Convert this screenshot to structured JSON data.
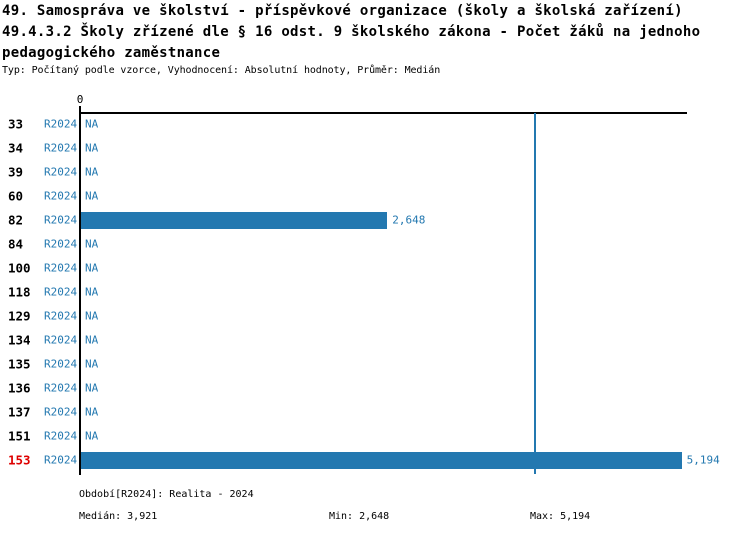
{
  "header": {
    "title_line1": "49. Samospráva ve školství - příspěvkové organizace (školy a školská zařízení)",
    "title_line2": "49.4.3.2 Školy zřízené dle § 16 odst. 9 školského zákona - Počet žáků na jednoho",
    "title_line3": "pedagogického zaměstnance",
    "meta": "Typ: Počítaný podle vzorce, Vyhodnocení: Absolutní hodnoty, Průměr: Medián"
  },
  "chart_data": {
    "type": "bar",
    "orientation": "horizontal",
    "title": "49.4.3.2 Školy zřízené dle § 16 odst. 9 školského zákona - Počet žáků na jednoho pedagogického zaměstnance",
    "series_label": "R2024",
    "na_label": "NA",
    "categories": [
      "33",
      "34",
      "39",
      "60",
      "82",
      "84",
      "100",
      "118",
      "129",
      "134",
      "135",
      "136",
      "137",
      "151",
      "153"
    ],
    "values": [
      null,
      null,
      null,
      null,
      2648,
      null,
      null,
      null,
      null,
      null,
      null,
      null,
      null,
      null,
      5194
    ],
    "value_labels": [
      "NA",
      "NA",
      "NA",
      "NA",
      "2,648",
      "NA",
      "NA",
      "NA",
      "NA",
      "NA",
      "NA",
      "NA",
      "NA",
      "NA",
      "5,194"
    ],
    "highlight_category": "153",
    "median_value": 3921,
    "axis": {
      "zero_tick": "0",
      "xlim": [
        0,
        5240
      ],
      "grid": false
    }
  },
  "footer": {
    "period": "Období[R2024]: Realita - 2024",
    "median": "Medián: 3,921",
    "min": "Min: 2,648",
    "max": "Max: 5,194"
  },
  "colors": {
    "accent_blue": "#2378B0",
    "highlight_red": "#DE0000",
    "axis_black": "#000000"
  }
}
